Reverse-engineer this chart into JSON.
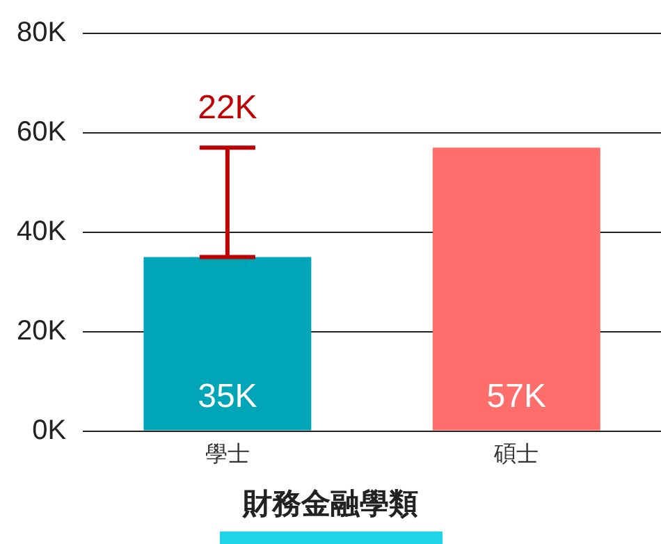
{
  "chart_data": {
    "type": "bar",
    "title": "財務金融學類",
    "categories": [
      "學士",
      "碩士"
    ],
    "values": [
      35000,
      57000
    ],
    "colors": [
      "#00a6b8",
      "#ff6e6b"
    ],
    "value_labels": [
      "35K",
      "57K"
    ],
    "annotations": [
      "22K"
    ],
    "ylim": [
      0,
      80000
    ],
    "yticks": [
      {
        "value": 0,
        "label": "0K"
      },
      {
        "value": 20000,
        "label": "20K"
      },
      {
        "value": 40000,
        "label": "40K"
      },
      {
        "value": 60000,
        "label": "60K"
      },
      {
        "value": 80000,
        "label": "80K"
      }
    ],
    "grid": "y",
    "legend": false
  }
}
